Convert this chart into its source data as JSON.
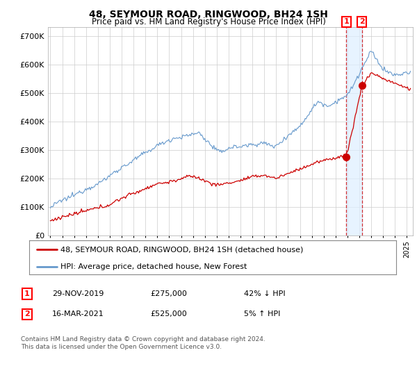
{
  "title": "48, SEYMOUR ROAD, RINGWOOD, BH24 1SH",
  "subtitle": "Price paid vs. HM Land Registry's House Price Index (HPI)",
  "ylabel_ticks": [
    "£0",
    "£100K",
    "£200K",
    "£300K",
    "£400K",
    "£500K",
    "£600K",
    "£700K"
  ],
  "ytick_values": [
    0,
    100000,
    200000,
    300000,
    400000,
    500000,
    600000,
    700000
  ],
  "ylim": [
    0,
    730000
  ],
  "xlim_start": 1994.8,
  "xlim_end": 2025.5,
  "hpi_color": "#6699cc",
  "price_color": "#cc0000",
  "shade_color": "#ddeeff",
  "marker1_date_x": 2019.91,
  "marker1_price": 275000,
  "marker2_date_x": 2021.21,
  "marker2_price": 525000,
  "legend_label1": "48, SEYMOUR ROAD, RINGWOOD, BH24 1SH (detached house)",
  "legend_label2": "HPI: Average price, detached house, New Forest",
  "table_row1_num": "1",
  "table_row1_date": "29-NOV-2019",
  "table_row1_price": "£275,000",
  "table_row1_hpi": "42% ↓ HPI",
  "table_row2_num": "2",
  "table_row2_date": "16-MAR-2021",
  "table_row2_price": "£525,000",
  "table_row2_hpi": "5% ↑ HPI",
  "footnote": "Contains HM Land Registry data © Crown copyright and database right 2024.\nThis data is licensed under the Open Government Licence v3.0.",
  "bg_color": "#ffffff",
  "grid_color": "#cccccc"
}
